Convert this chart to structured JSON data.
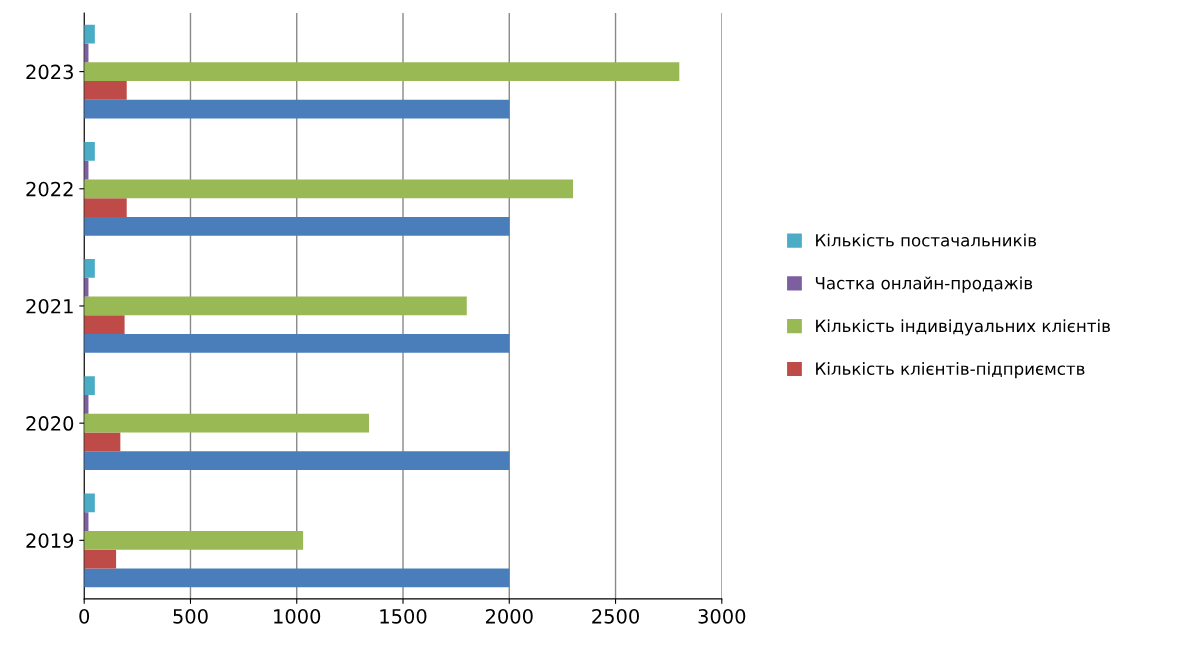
{
  "chart_data": {
    "type": "bar",
    "orientation": "horizontal",
    "categories": [
      "2023",
      "2022",
      "2021",
      "2020",
      "2019"
    ],
    "series": [
      {
        "color": "#4a7ebb",
        "values": [
          2000,
          2000,
          2000,
          2000,
          2000
        ]
      },
      {
        "name": "Кількість клієнтів-підприємств",
        "color": "#be4b48",
        "values": [
          200,
          200,
          190,
          170,
          150
        ]
      },
      {
        "name": "Кількість індивідуальних клієнтів",
        "color": "#98b954",
        "values": [
          2800,
          2300,
          1800,
          1340,
          1030
        ]
      },
      {
        "name": "Частка онлайн-продажів",
        "color": "#7d5fa0",
        "values": [
          20,
          20,
          20,
          20,
          20
        ]
      },
      {
        "name": "Кількість постачальників",
        "color": "#4bacc6",
        "values": [
          50,
          50,
          50,
          50,
          50
        ]
      }
    ],
    "xlim": [
      0,
      3000
    ],
    "xticks": [
      0,
      500,
      1000,
      1500,
      2000,
      2500,
      3000
    ],
    "grid": "x",
    "legend": "right"
  }
}
